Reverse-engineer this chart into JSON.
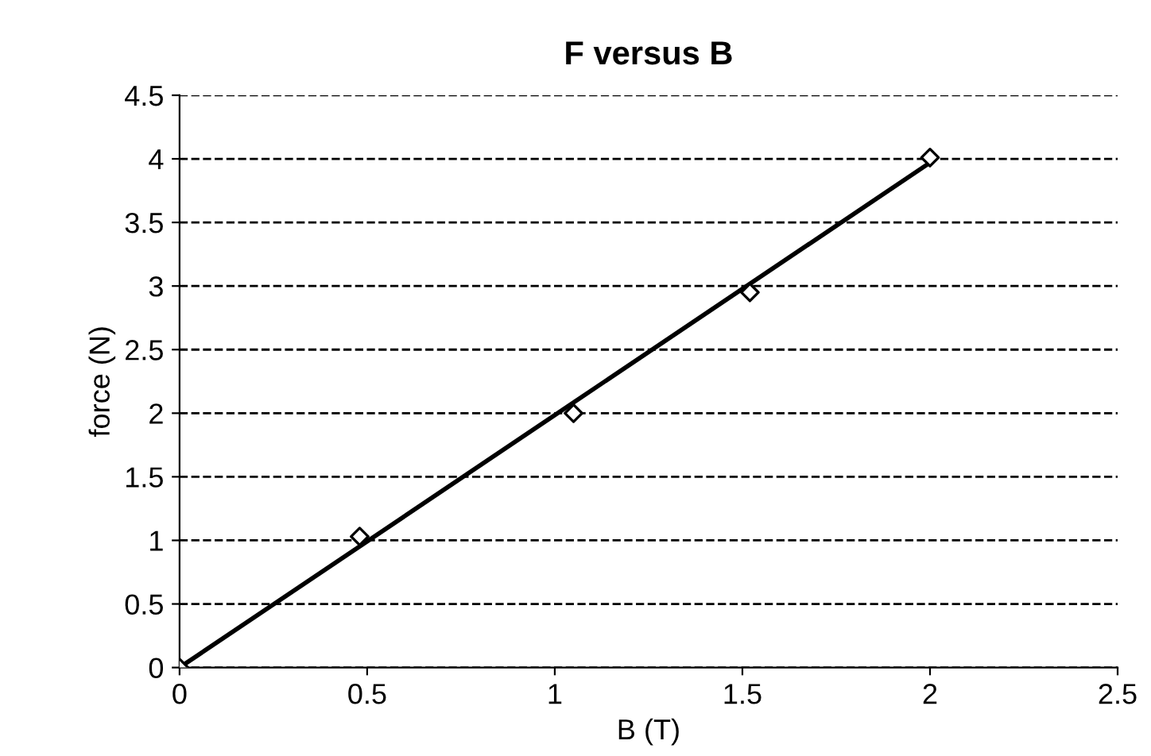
{
  "chart_data": {
    "type": "scatter",
    "title": "F versus B",
    "xlabel": "B (T)",
    "ylabel": "force (N)",
    "xlim": [
      0,
      2.5
    ],
    "xticks": [
      0,
      0.5,
      1,
      1.5,
      2,
      2.5
    ],
    "ylim": [
      0,
      4.5
    ],
    "yticks": [
      0,
      0.5,
      1,
      1.5,
      2,
      2.5,
      3,
      3.5,
      4,
      4.5
    ],
    "grid": "y",
    "legend": false,
    "marker": "diamond",
    "series": [
      {
        "color": "#000000",
        "x": [
          0,
          0.48,
          1.05,
          1.52,
          2.0
        ],
        "values": [
          0,
          1.03,
          2.0,
          2.95,
          4.01
        ]
      },
      {
        "type": "line",
        "color": "#000000",
        "x": [
          0,
          2.0
        ],
        "values": [
          0,
          3.97
        ],
        "marker": "none",
        "line_style": "solid"
      }
    ]
  }
}
